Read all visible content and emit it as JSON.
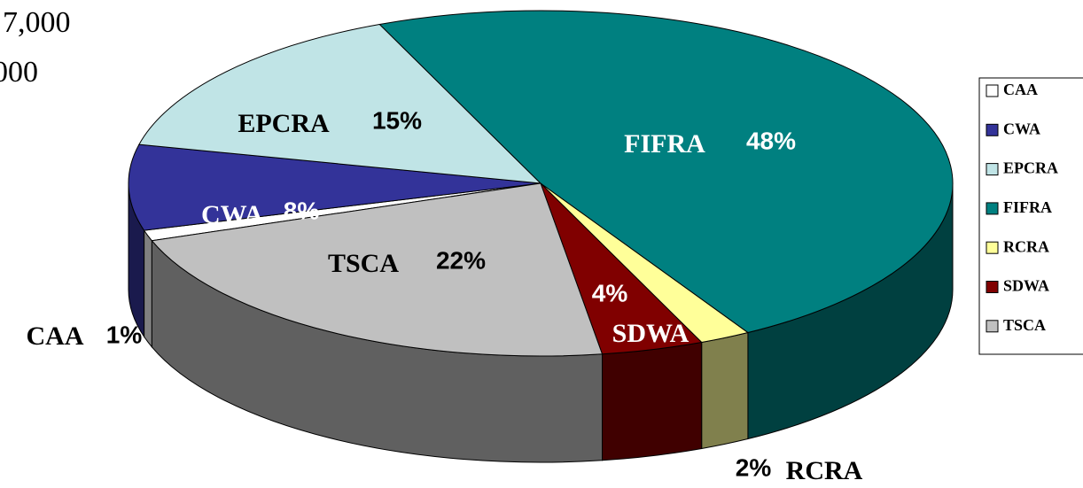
{
  "chart_data": {
    "type": "pie",
    "annotations": [
      "7,000",
      "000"
    ],
    "categories": [
      "CAA",
      "CWA",
      "EPCRA",
      "FIFRA",
      "RCRA",
      "SDWA",
      "TSCA"
    ],
    "values": [
      1,
      8,
      15,
      48,
      2,
      4,
      22
    ],
    "value_labels": [
      "1%",
      "8%",
      "15%",
      "48%",
      "2%",
      "4%",
      "22%"
    ],
    "colors": [
      "#ffffff",
      "#333399",
      "#c0e4e6",
      "#008080",
      "#ffff99",
      "#800000",
      "#c0c0c0"
    ],
    "legend": "right"
  }
}
